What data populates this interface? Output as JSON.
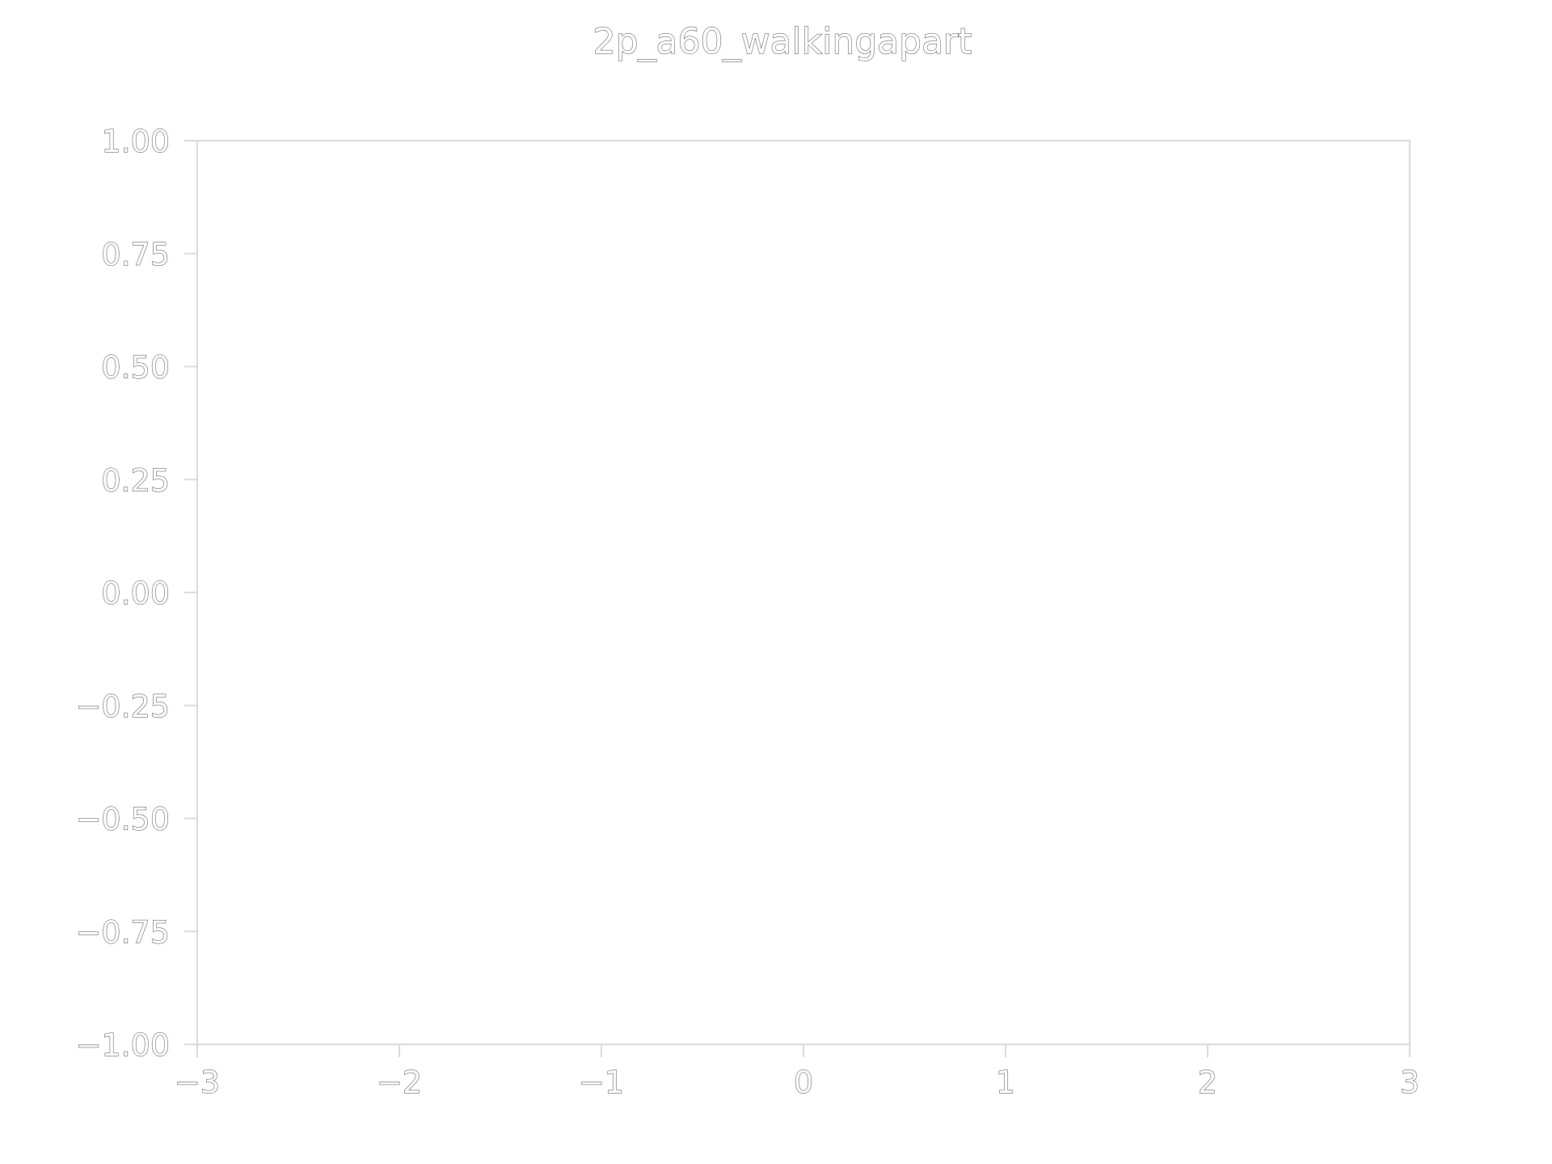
{
  "chart_data": {
    "type": "scatter",
    "title": "2p_a60_walkingapart",
    "xlabel": "",
    "ylabel": "",
    "xlim": [
      -3,
      3
    ],
    "ylim": [
      -1.0,
      1.0
    ],
    "x_ticks": [
      -3,
      -2,
      -1,
      0,
      1,
      2,
      3
    ],
    "x_tick_labels": [
      "−3",
      "−2",
      "−1",
      "0",
      "1",
      "2",
      "3"
    ],
    "y_ticks": [
      1.0,
      0.75,
      0.5,
      0.25,
      0.0,
      -0.25,
      -0.5,
      -0.75,
      -1.0
    ],
    "y_tick_labels": [
      "1.00",
      "0.75",
      "0.50",
      "0.25",
      "0.00",
      "−0.25",
      "−0.50",
      "−0.75",
      "−1.00"
    ],
    "series": [],
    "grid": false,
    "legend": "none",
    "colors": {
      "text_outline": "#3a3a3a",
      "frame": "#d9d9d9",
      "background": "#ffffff"
    }
  }
}
